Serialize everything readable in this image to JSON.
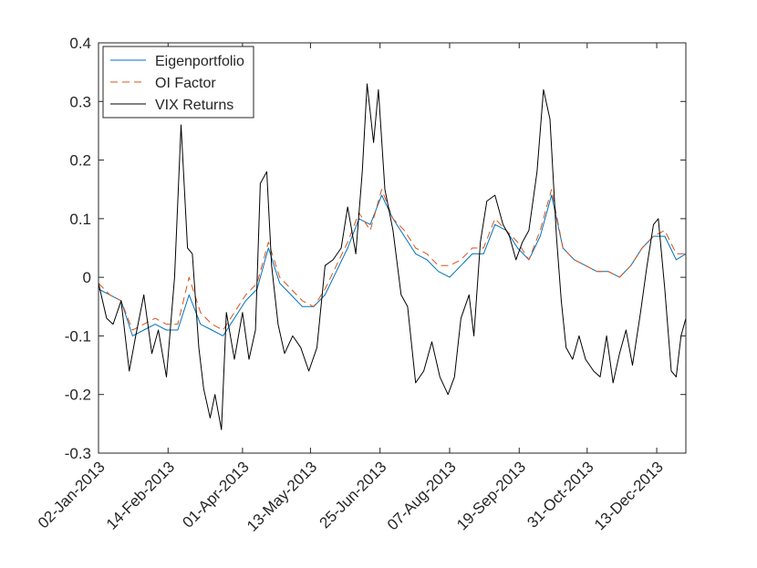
{
  "chart_data": {
    "type": "line",
    "title": "",
    "xlabel": "",
    "ylabel": "",
    "ylim": [
      -0.3,
      0.4
    ],
    "yticks": [
      "-0.3",
      "-0.2",
      "-0.1",
      "0",
      "0.1",
      "0.2",
      "0.3",
      "0.4"
    ],
    "yticks_values": [
      -0.3,
      -0.2,
      -0.1,
      0,
      0.1,
      0.2,
      0.3,
      0.4
    ],
    "xticks": [
      "02-Jan-2013",
      "14-Feb-2013",
      "01-Apr-2013",
      "13-May-2013",
      "25-Jun-2013",
      "07-Aug-2013",
      "19-Sep-2013",
      "31-Oct-2013",
      "13-Dec-2013"
    ],
    "xlim": [
      "2013-01-02",
      "2013-12-31"
    ],
    "grid": false,
    "legend_position": "top-left",
    "series": [
      {
        "name": "Eigenportfolio",
        "color": "#0072BD",
        "style": "solid",
        "points": [
          [
            "2013-01-02",
            -0.02
          ],
          [
            "2013-01-09",
            -0.03
          ],
          [
            "2013-01-16",
            -0.04
          ],
          [
            "2013-01-23",
            -0.1
          ],
          [
            "2013-01-30",
            -0.09
          ],
          [
            "2013-02-06",
            -0.08
          ],
          [
            "2013-02-13",
            -0.09
          ],
          [
            "2013-02-20",
            -0.09
          ],
          [
            "2013-02-27",
            -0.03
          ],
          [
            "2013-03-06",
            -0.08
          ],
          [
            "2013-03-13",
            -0.09
          ],
          [
            "2013-03-20",
            -0.1
          ],
          [
            "2013-03-27",
            -0.07
          ],
          [
            "2013-04-03",
            -0.04
          ],
          [
            "2013-04-10",
            -0.02
          ],
          [
            "2013-04-17",
            0.05
          ],
          [
            "2013-04-24",
            -0.01
          ],
          [
            "2013-05-01",
            -0.03
          ],
          [
            "2013-05-08",
            -0.05
          ],
          [
            "2013-05-15",
            -0.05
          ],
          [
            "2013-05-22",
            -0.03
          ],
          [
            "2013-05-29",
            0.01
          ],
          [
            "2013-06-05",
            0.05
          ],
          [
            "2013-06-12",
            0.1
          ],
          [
            "2013-06-19",
            0.09
          ],
          [
            "2013-06-26",
            0.14
          ],
          [
            "2013-07-03",
            0.1
          ],
          [
            "2013-07-10",
            0.07
          ],
          [
            "2013-07-17",
            0.04
          ],
          [
            "2013-07-24",
            0.03
          ],
          [
            "2013-07-31",
            0.01
          ],
          [
            "2013-08-07",
            0.0
          ],
          [
            "2013-08-14",
            0.02
          ],
          [
            "2013-08-21",
            0.04
          ],
          [
            "2013-08-28",
            0.04
          ],
          [
            "2013-09-04",
            0.09
          ],
          [
            "2013-09-11",
            0.08
          ],
          [
            "2013-09-18",
            0.05
          ],
          [
            "2013-09-25",
            0.03
          ],
          [
            "2013-10-02",
            0.07
          ],
          [
            "2013-10-09",
            0.14
          ],
          [
            "2013-10-16",
            0.05
          ],
          [
            "2013-10-23",
            0.03
          ],
          [
            "2013-10-30",
            0.02
          ],
          [
            "2013-11-06",
            0.01
          ],
          [
            "2013-11-13",
            0.01
          ],
          [
            "2013-11-20",
            0.0
          ],
          [
            "2013-11-27",
            0.02
          ],
          [
            "2013-12-04",
            0.05
          ],
          [
            "2013-12-11",
            0.07
          ],
          [
            "2013-12-18",
            0.07
          ],
          [
            "2013-12-25",
            0.03
          ],
          [
            "2013-12-31",
            0.04
          ]
        ]
      },
      {
        "name": "OI Factor",
        "color": "#D95319",
        "style": "dashed",
        "points": [
          [
            "2013-01-02",
            -0.01
          ],
          [
            "2013-01-09",
            -0.03
          ],
          [
            "2013-01-16",
            -0.04
          ],
          [
            "2013-01-23",
            -0.09
          ],
          [
            "2013-01-30",
            -0.08
          ],
          [
            "2013-02-06",
            -0.07
          ],
          [
            "2013-02-13",
            -0.08
          ],
          [
            "2013-02-20",
            -0.08
          ],
          [
            "2013-02-27",
            0.0
          ],
          [
            "2013-03-06",
            -0.06
          ],
          [
            "2013-03-13",
            -0.08
          ],
          [
            "2013-03-20",
            -0.09
          ],
          [
            "2013-03-27",
            -0.06
          ],
          [
            "2013-04-03",
            -0.03
          ],
          [
            "2013-04-10",
            -0.01
          ],
          [
            "2013-04-17",
            0.06
          ],
          [
            "2013-04-24",
            0.0
          ],
          [
            "2013-05-01",
            -0.02
          ],
          [
            "2013-05-08",
            -0.04
          ],
          [
            "2013-05-15",
            -0.05
          ],
          [
            "2013-05-22",
            -0.02
          ],
          [
            "2013-05-29",
            0.02
          ],
          [
            "2013-06-05",
            0.06
          ],
          [
            "2013-06-12",
            0.11
          ],
          [
            "2013-06-19",
            0.08
          ],
          [
            "2013-06-26",
            0.15
          ],
          [
            "2013-07-03",
            0.1
          ],
          [
            "2013-07-10",
            0.08
          ],
          [
            "2013-07-17",
            0.05
          ],
          [
            "2013-07-24",
            0.04
          ],
          [
            "2013-07-31",
            0.02
          ],
          [
            "2013-08-07",
            0.02
          ],
          [
            "2013-08-14",
            0.03
          ],
          [
            "2013-08-21",
            0.05
          ],
          [
            "2013-08-28",
            0.05
          ],
          [
            "2013-09-04",
            0.1
          ],
          [
            "2013-09-11",
            0.08
          ],
          [
            "2013-09-18",
            0.06
          ],
          [
            "2013-09-25",
            0.03
          ],
          [
            "2013-10-02",
            0.08
          ],
          [
            "2013-10-09",
            0.15
          ],
          [
            "2013-10-16",
            0.05
          ],
          [
            "2013-10-23",
            0.03
          ],
          [
            "2013-10-30",
            0.02
          ],
          [
            "2013-11-06",
            0.01
          ],
          [
            "2013-11-13",
            0.01
          ],
          [
            "2013-11-20",
            0.0
          ],
          [
            "2013-11-27",
            0.02
          ],
          [
            "2013-12-04",
            0.05
          ],
          [
            "2013-12-11",
            0.07
          ],
          [
            "2013-12-18",
            0.08
          ],
          [
            "2013-12-25",
            0.04
          ],
          [
            "2013-12-31",
            0.04
          ]
        ]
      },
      {
        "name": "VIX Returns",
        "color": "#000000",
        "style": "solid",
        "points": [
          [
            "2013-01-02",
            -0.01
          ],
          [
            "2013-01-07",
            -0.07
          ],
          [
            "2013-01-11",
            -0.08
          ],
          [
            "2013-01-16",
            -0.04
          ],
          [
            "2013-01-21",
            -0.16
          ],
          [
            "2013-01-25",
            -0.1
          ],
          [
            "2013-01-30",
            -0.03
          ],
          [
            "2013-02-04",
            -0.13
          ],
          [
            "2013-02-08",
            -0.09
          ],
          [
            "2013-02-13",
            -0.17
          ],
          [
            "2013-02-18",
            0.0
          ],
          [
            "2013-02-22",
            0.26
          ],
          [
            "2013-02-26",
            0.05
          ],
          [
            "2013-03-01",
            0.04
          ],
          [
            "2013-03-05",
            -0.12
          ],
          [
            "2013-03-08",
            -0.19
          ],
          [
            "2013-03-12",
            -0.24
          ],
          [
            "2013-03-15",
            -0.2
          ],
          [
            "2013-03-19",
            -0.26
          ],
          [
            "2013-03-22",
            -0.06
          ],
          [
            "2013-03-27",
            -0.14
          ],
          [
            "2013-04-01",
            -0.06
          ],
          [
            "2013-04-05",
            -0.14
          ],
          [
            "2013-04-09",
            -0.09
          ],
          [
            "2013-04-12",
            0.16
          ],
          [
            "2013-04-16",
            0.18
          ],
          [
            "2013-04-19",
            0.02
          ],
          [
            "2013-04-23",
            -0.08
          ],
          [
            "2013-04-27",
            -0.13
          ],
          [
            "2013-05-02",
            -0.1
          ],
          [
            "2013-05-07",
            -0.12
          ],
          [
            "2013-05-12",
            -0.16
          ],
          [
            "2013-05-17",
            -0.12
          ],
          [
            "2013-05-22",
            0.02
          ],
          [
            "2013-05-27",
            0.03
          ],
          [
            "2013-06-01",
            0.05
          ],
          [
            "2013-06-05",
            0.12
          ],
          [
            "2013-06-10",
            0.04
          ],
          [
            "2013-06-14",
            0.18
          ],
          [
            "2013-06-17",
            0.33
          ],
          [
            "2013-06-21",
            0.23
          ],
          [
            "2013-06-24",
            0.32
          ],
          [
            "2013-06-28",
            0.15
          ],
          [
            "2013-07-03",
            0.08
          ],
          [
            "2013-07-08",
            -0.03
          ],
          [
            "2013-07-12",
            -0.05
          ],
          [
            "2013-07-17",
            -0.18
          ],
          [
            "2013-07-22",
            -0.16
          ],
          [
            "2013-07-27",
            -0.11
          ],
          [
            "2013-08-01",
            -0.17
          ],
          [
            "2013-08-06",
            -0.2
          ],
          [
            "2013-08-10",
            -0.17
          ],
          [
            "2013-08-14",
            -0.07
          ],
          [
            "2013-08-19",
            -0.03
          ],
          [
            "2013-08-22",
            -0.1
          ],
          [
            "2013-08-26",
            0.06
          ],
          [
            "2013-08-30",
            0.13
          ],
          [
            "2013-09-04",
            0.14
          ],
          [
            "2013-09-09",
            0.09
          ],
          [
            "2013-09-13",
            0.07
          ],
          [
            "2013-09-17",
            0.03
          ],
          [
            "2013-09-21",
            0.06
          ],
          [
            "2013-09-25",
            0.08
          ],
          [
            "2013-09-30",
            0.18
          ],
          [
            "2013-10-04",
            0.32
          ],
          [
            "2013-10-08",
            0.27
          ],
          [
            "2013-10-12",
            0.07
          ],
          [
            "2013-10-15",
            -0.04
          ],
          [
            "2013-10-18",
            -0.12
          ],
          [
            "2013-10-22",
            -0.14
          ],
          [
            "2013-10-26",
            -0.1
          ],
          [
            "2013-10-30",
            -0.14
          ],
          [
            "2013-11-04",
            -0.16
          ],
          [
            "2013-11-08",
            -0.17
          ],
          [
            "2013-11-12",
            -0.1
          ],
          [
            "2013-11-16",
            -0.18
          ],
          [
            "2013-11-20",
            -0.13
          ],
          [
            "2013-11-24",
            -0.09
          ],
          [
            "2013-11-28",
            -0.15
          ],
          [
            "2013-12-03",
            -0.06
          ],
          [
            "2013-12-07",
            0.02
          ],
          [
            "2013-12-11",
            0.09
          ],
          [
            "2013-12-14",
            0.1
          ],
          [
            "2013-12-18",
            -0.02
          ],
          [
            "2013-12-22",
            -0.16
          ],
          [
            "2013-12-25",
            -0.17
          ],
          [
            "2013-12-28",
            -0.1
          ],
          [
            "2013-12-31",
            -0.07
          ]
        ]
      }
    ]
  }
}
